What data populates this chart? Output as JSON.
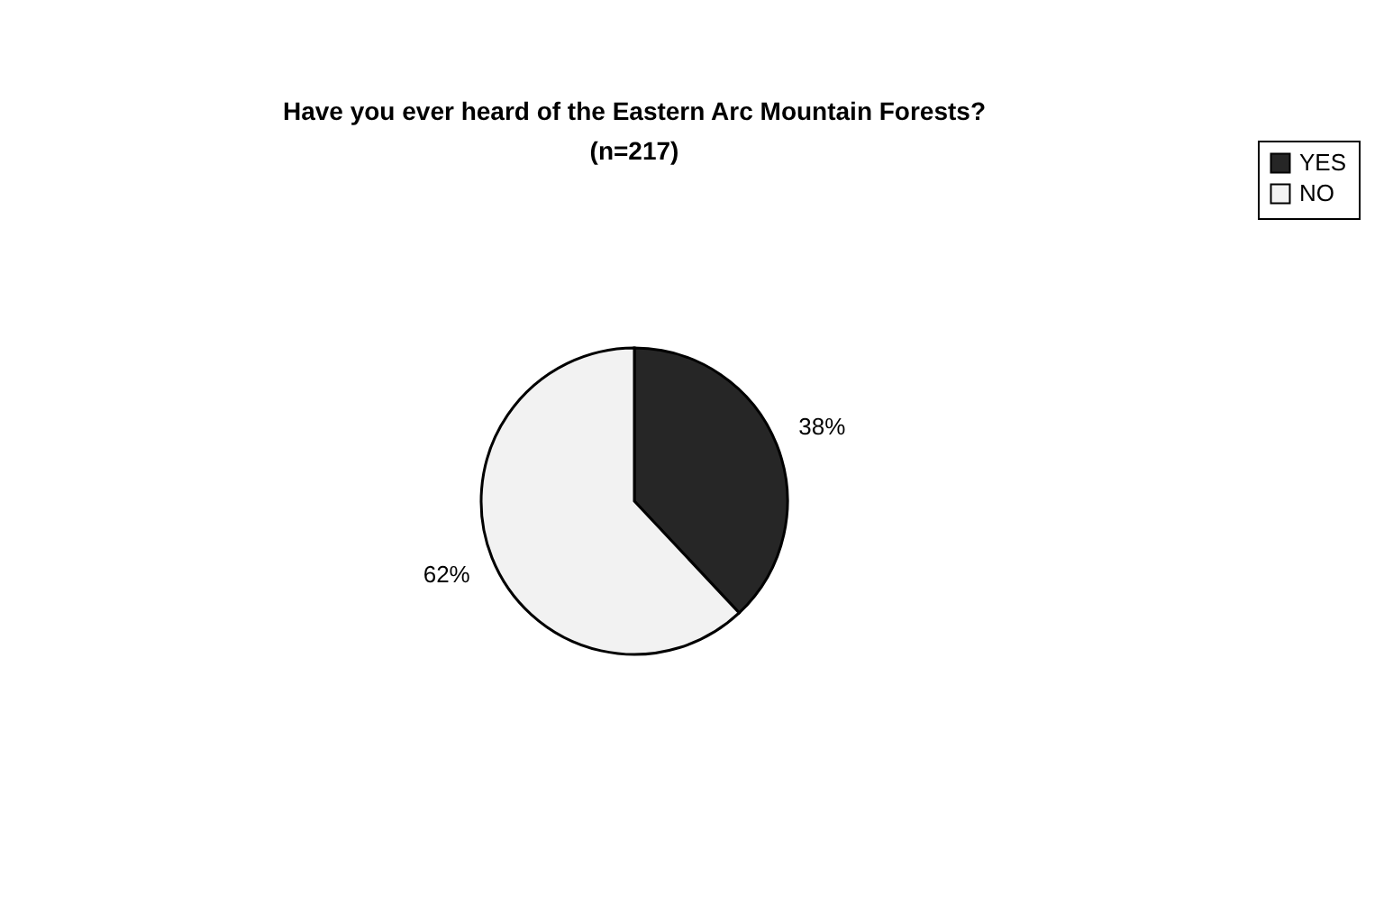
{
  "chart_data": {
    "type": "pie",
    "title": "Have you ever heard of the Eastern Arc Mountain Forests?",
    "subtitle": "(n=217)",
    "categories": [
      "YES",
      "NO"
    ],
    "values": [
      38,
      62
    ],
    "colors": [
      "#262626",
      "#f2f2f2"
    ],
    "value_labels": [
      "38%",
      "62%"
    ],
    "legend": "right"
  }
}
